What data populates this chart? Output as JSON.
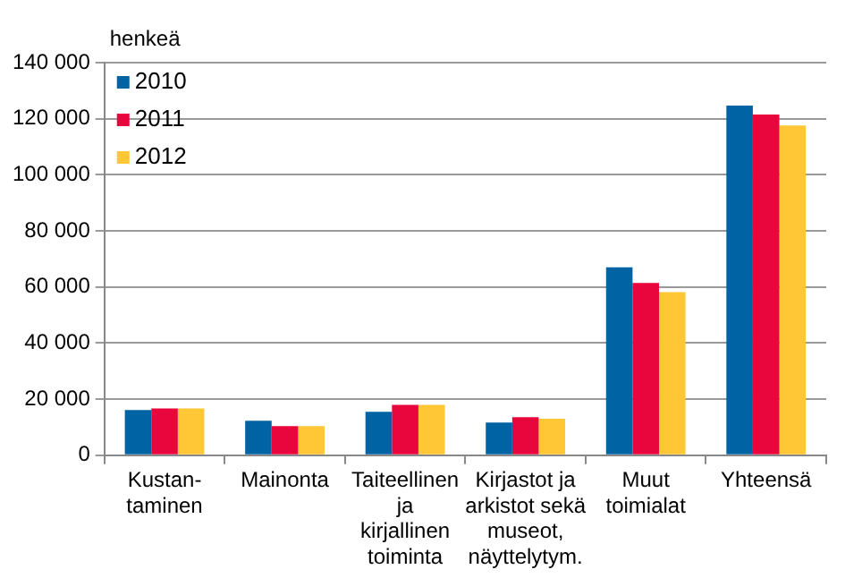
{
  "chart_data": {
    "type": "bar",
    "ylabel": "henkeä",
    "categories": [
      "Kustan-\ntaminen",
      "Mainonta",
      "Taiteellinen\nja\nkirjallinen\ntoiminta",
      "Kirjastot ja\narkistot sekä\nmuseot,\nnäyttelytym.",
      "Muut\ntoimialat",
      "Yhteensä"
    ],
    "series": [
      {
        "name": "2010",
        "color": "#0063a3",
        "values": [
          16100,
          12300,
          15500,
          11700,
          67000,
          124700
        ]
      },
      {
        "name": "2011",
        "color": "#e8063c",
        "values": [
          16700,
          10400,
          18000,
          13600,
          61400,
          121500
        ]
      },
      {
        "name": "2012",
        "color": "#ffc735",
        "values": [
          16700,
          10400,
          18000,
          13000,
          58200,
          117600
        ]
      }
    ],
    "ylim": [
      0,
      140000
    ],
    "yticks": [
      {
        "value": 0,
        "label": "0"
      },
      {
        "value": 20000,
        "label": "20 000"
      },
      {
        "value": 40000,
        "label": "40 000"
      },
      {
        "value": 60000,
        "label": "60 000"
      },
      {
        "value": 80000,
        "label": "80 000"
      },
      {
        "value": 100000,
        "label": "100 000"
      },
      {
        "value": 120000,
        "label": "120 000"
      },
      {
        "value": 140000,
        "label": "140 000"
      }
    ],
    "grid": "y",
    "legend": "top left"
  }
}
